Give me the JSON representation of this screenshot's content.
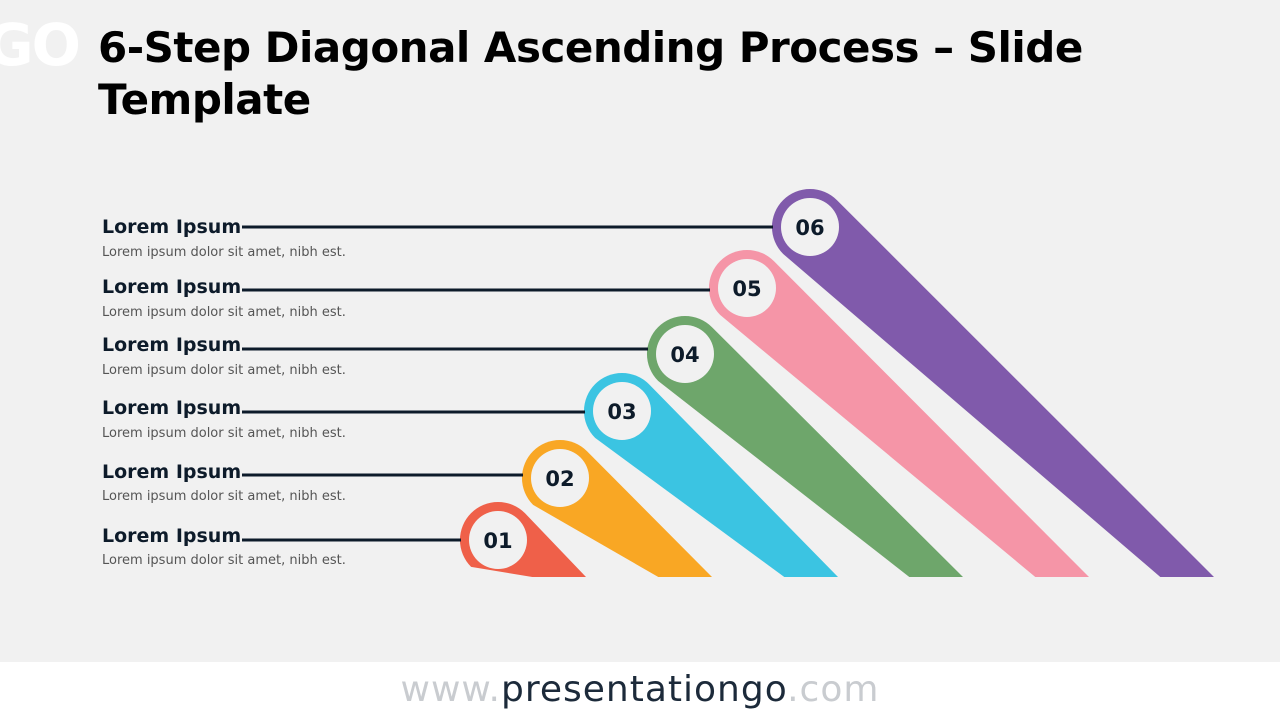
{
  "logo_fragment": "GO",
  "title": "6-Step Diagonal Ascending Process – Slide Template",
  "colors": {
    "background": "#f1f1f1",
    "line": "#0d1b2a",
    "circle": "#f1f1f1"
  },
  "steps": [
    {
      "number": "01",
      "title": "Lorem Ipsum",
      "description": "Lorem ipsum dolor sit amet, nibh est.",
      "color": "#ef6049"
    },
    {
      "number": "02",
      "title": "Lorem Ipsum",
      "description": "Lorem ipsum dolor sit amet, nibh est.",
      "color": "#f9a724"
    },
    {
      "number": "03",
      "title": "Lorem Ipsum",
      "description": "Lorem ipsum dolor sit amet, nibh est.",
      "color": "#3bc4e2"
    },
    {
      "number": "04",
      "title": "Lorem Ipsum",
      "description": "Lorem ipsum dolor sit amet, nibh est.",
      "color": "#6ea66b"
    },
    {
      "number": "05",
      "title": "Lorem Ipsum",
      "description": "Lorem ipsum dolor sit amet, nibh est.",
      "color": "#f595a7"
    },
    {
      "number": "06",
      "title": "Lorem Ipsum",
      "description": "Lorem ipsum dolor sit amet, nibh est.",
      "color": "#805aab"
    }
  ],
  "footer": {
    "prefix": "www.",
    "brand": "presentationgo",
    "suffix": ".com"
  }
}
